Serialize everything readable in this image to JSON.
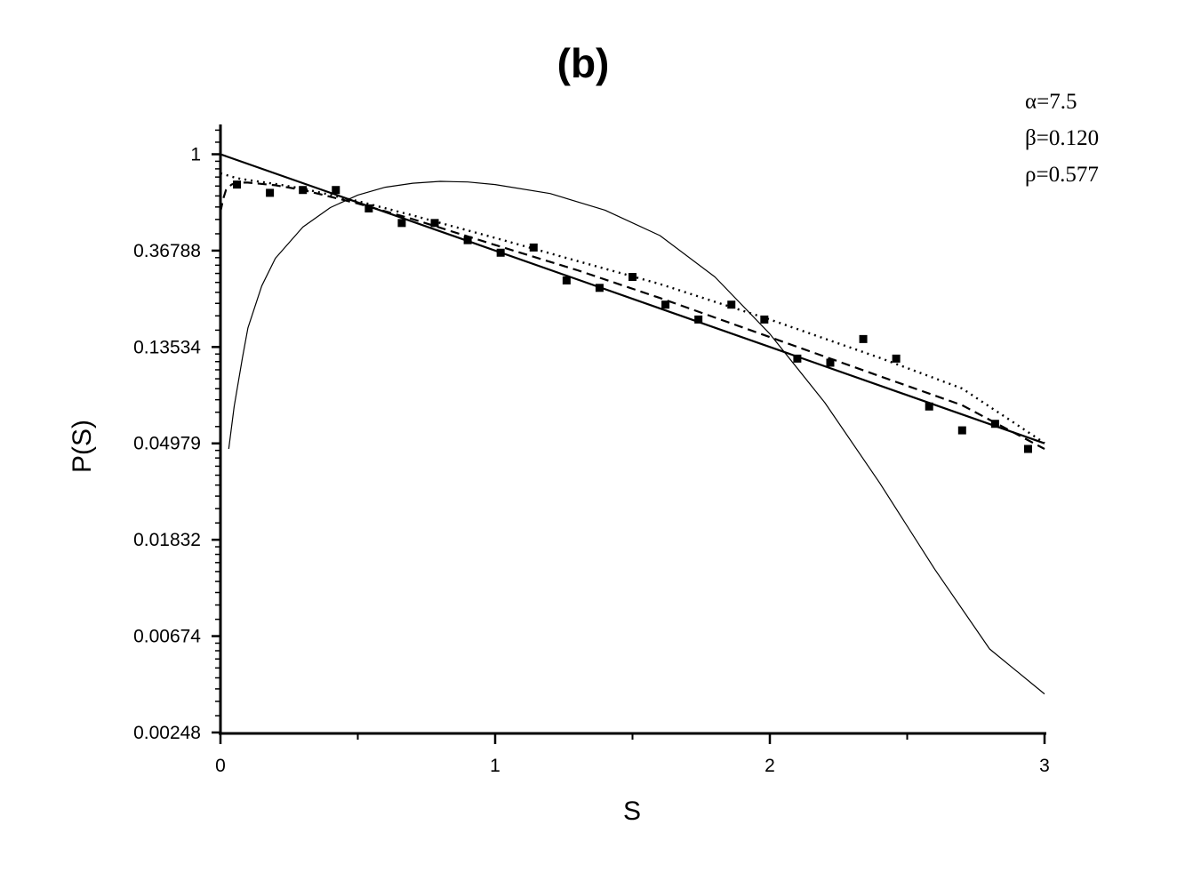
{
  "chart_data": {
    "type": "scatter",
    "title": "(b)",
    "xlabel": "S",
    "ylabel": "P(S)",
    "xlim": [
      0,
      3
    ],
    "ylim_ln": [
      -6,
      0.5
    ],
    "y_scale": "natural-log",
    "grid": false,
    "x_ticks": [
      {
        "value": 0,
        "label": "0"
      },
      {
        "value": 1,
        "label": "1"
      },
      {
        "value": 2,
        "label": "2"
      },
      {
        "value": 3,
        "label": "3"
      }
    ],
    "y_ticks": [
      {
        "value": 1,
        "label": "1"
      },
      {
        "value": 0.36788,
        "label": "0.36788"
      },
      {
        "value": 0.13534,
        "label": "0.13534"
      },
      {
        "value": 0.04979,
        "label": "0.04979"
      },
      {
        "value": 0.01832,
        "label": "0.01832"
      },
      {
        "value": 0.00674,
        "label": "0.00674"
      },
      {
        "value": 0.00248,
        "label": "0.00248"
      }
    ],
    "annotations": [
      "α=7.5",
      "β=0.120",
      "ρ=0.577"
    ],
    "points": [
      {
        "x": 0.06,
        "y": 0.73
      },
      {
        "x": 0.18,
        "y": 0.67
      },
      {
        "x": 0.3,
        "y": 0.69
      },
      {
        "x": 0.42,
        "y": 0.69
      },
      {
        "x": 0.54,
        "y": 0.57
      },
      {
        "x": 0.66,
        "y": 0.49
      },
      {
        "x": 0.78,
        "y": 0.49
      },
      {
        "x": 0.9,
        "y": 0.41
      },
      {
        "x": 1.02,
        "y": 0.36
      },
      {
        "x": 1.14,
        "y": 0.38
      },
      {
        "x": 1.26,
        "y": 0.27
      },
      {
        "x": 1.38,
        "y": 0.25
      },
      {
        "x": 1.5,
        "y": 0.28
      },
      {
        "x": 1.62,
        "y": 0.21
      },
      {
        "x": 1.74,
        "y": 0.18
      },
      {
        "x": 1.86,
        "y": 0.21
      },
      {
        "x": 1.98,
        "y": 0.18
      },
      {
        "x": 2.1,
        "y": 0.12
      },
      {
        "x": 2.22,
        "y": 0.115
      },
      {
        "x": 2.34,
        "y": 0.147
      },
      {
        "x": 2.46,
        "y": 0.12
      },
      {
        "x": 2.58,
        "y": 0.073
      },
      {
        "x": 2.7,
        "y": 0.057
      },
      {
        "x": 2.82,
        "y": 0.061
      },
      {
        "x": 2.94,
        "y": 0.047
      }
    ],
    "curves": [
      {
        "style": "solid-thick",
        "x": [
          0,
          3
        ],
        "y": [
          1,
          0.04979
        ]
      },
      {
        "style": "dashed",
        "x": [
          0.0,
          0.01,
          0.02,
          0.04,
          0.06,
          0.1,
          0.2,
          0.3,
          0.5,
          0.7,
          1.0,
          1.3,
          1.6,
          2.0,
          2.4,
          2.7,
          3.0
        ],
        "y": [
          0.55,
          0.63,
          0.69,
          0.73,
          0.745,
          0.745,
          0.725,
          0.69,
          0.6,
          0.51,
          0.39,
          0.3,
          0.225,
          0.15,
          0.1,
          0.074,
          0.047
        ]
      },
      {
        "style": "dotted",
        "x": [
          0.0,
          0.03,
          0.06,
          0.1,
          0.2,
          0.3,
          0.5,
          0.7,
          1.0,
          1.3,
          1.6,
          2.0,
          2.4,
          2.7,
          3.0
        ],
        "y": [
          0.82,
          0.8,
          0.78,
          0.765,
          0.735,
          0.7,
          0.615,
          0.53,
          0.42,
          0.33,
          0.26,
          0.18,
          0.121,
          0.088,
          0.05
        ]
      },
      {
        "style": "solid-thin",
        "x": [
          0.03,
          0.05,
          0.08,
          0.1,
          0.15,
          0.2,
          0.3,
          0.4,
          0.5,
          0.6,
          0.7,
          0.8,
          0.9,
          1.0,
          1.2,
          1.4,
          1.6,
          1.8,
          2.0,
          2.2,
          2.4,
          2.6,
          2.8,
          3.0
        ],
        "y": [
          0.047,
          0.073,
          0.121,
          0.165,
          0.255,
          0.34,
          0.47,
          0.575,
          0.655,
          0.71,
          0.74,
          0.755,
          0.75,
          0.73,
          0.665,
          0.56,
          0.43,
          0.28,
          0.155,
          0.076,
          0.033,
          0.0135,
          0.0059,
          0.0037
        ]
      }
    ]
  }
}
